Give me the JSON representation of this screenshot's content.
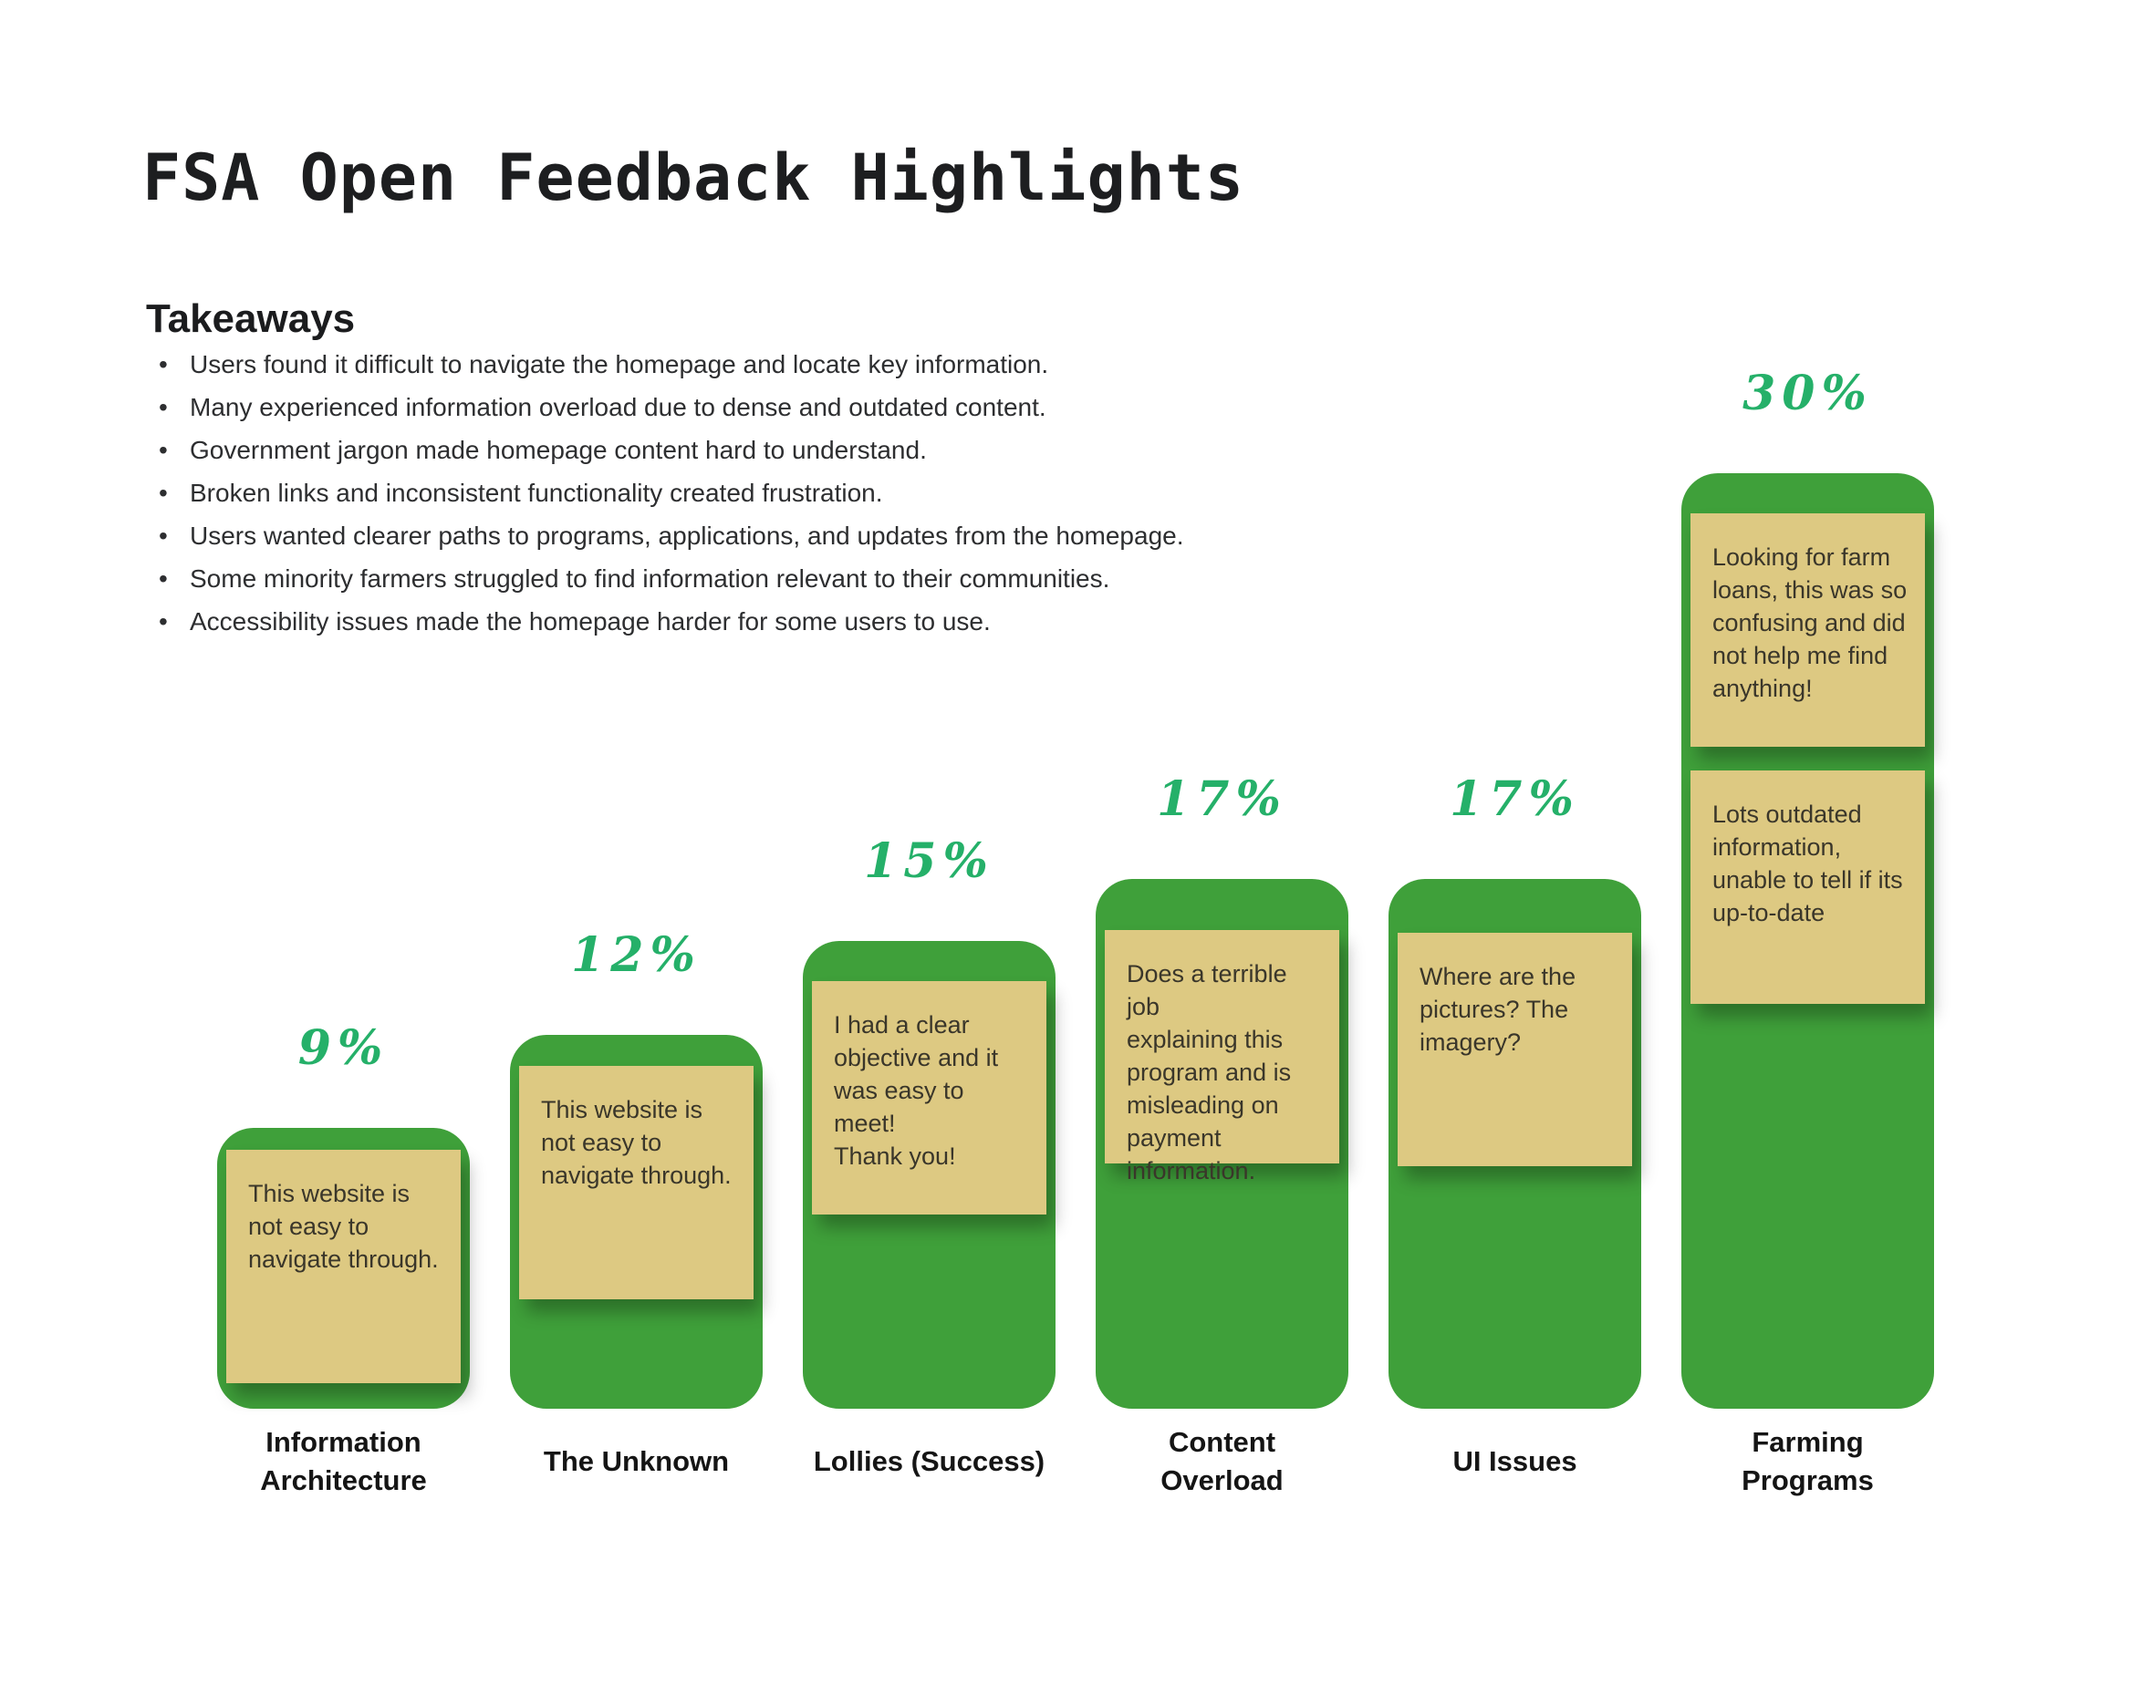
{
  "title": "FSA Open Feedback Highlights",
  "takeaways": {
    "heading": "Takeaways",
    "bullets": [
      "Users found it difficult to navigate the homepage and locate key information.",
      "Many experienced information overload due to dense and outdated content.",
      "Government jargon made homepage content hard to understand.",
      "Broken links and inconsistent functionality created frustration.",
      "Users wanted clearer paths to programs, applications, and updates from the homepage.",
      "Some minority farmers struggled to find information relevant to their communities.",
      "Accessibility issues made the homepage harder for some users to use."
    ]
  },
  "chart_data": {
    "type": "bar",
    "title": "FSA Open Feedback Highlights",
    "unit": "%",
    "ylim": [
      0,
      30
    ],
    "grid": false,
    "legend": false,
    "bar_color": "#3fa03a",
    "note_color": "#ddc982",
    "percent_label_color": "#25b069",
    "categories": [
      "Information Architecture",
      "The Unknown",
      "Lollies (Success)",
      "Content Overload",
      "UI Issues",
      "Farming Programs"
    ],
    "values": [
      9,
      12,
      15,
      17,
      17,
      30
    ],
    "bars": [
      {
        "label": "Information\nArchitecture",
        "value": 9,
        "pct_label": "9%",
        "notes": [
          "This website is\nnot easy to\nnavigate through."
        ]
      },
      {
        "label": "The Unknown",
        "value": 12,
        "pct_label": "12%",
        "notes": [
          "This website is\nnot easy to\nnavigate through."
        ]
      },
      {
        "label": "Lollies (Success)",
        "value": 15,
        "pct_label": "15%",
        "notes": [
          "I had a clear\nobjective and it\nwas easy to meet!\nThank you!"
        ]
      },
      {
        "label": "Content\nOverload",
        "value": 17,
        "pct_label": "17%",
        "notes": [
          "Does a terrible job\nexplaining this\nprogram and is\nmisleading on\npayment\ninformation."
        ]
      },
      {
        "label": "UI Issues",
        "value": 17,
        "pct_label": "17%",
        "notes": [
          "Where are the\npictures? The\nimagery?"
        ]
      },
      {
        "label": "Farming\nPrograms",
        "value": 30,
        "pct_label": "30%",
        "notes": [
          "Looking for farm\nloans, this was so\nconfusing and did\nnot help me find\nanything!",
          "Lots outdated\ninformation,\nunable to tell if its\nup-to-date"
        ]
      }
    ]
  }
}
